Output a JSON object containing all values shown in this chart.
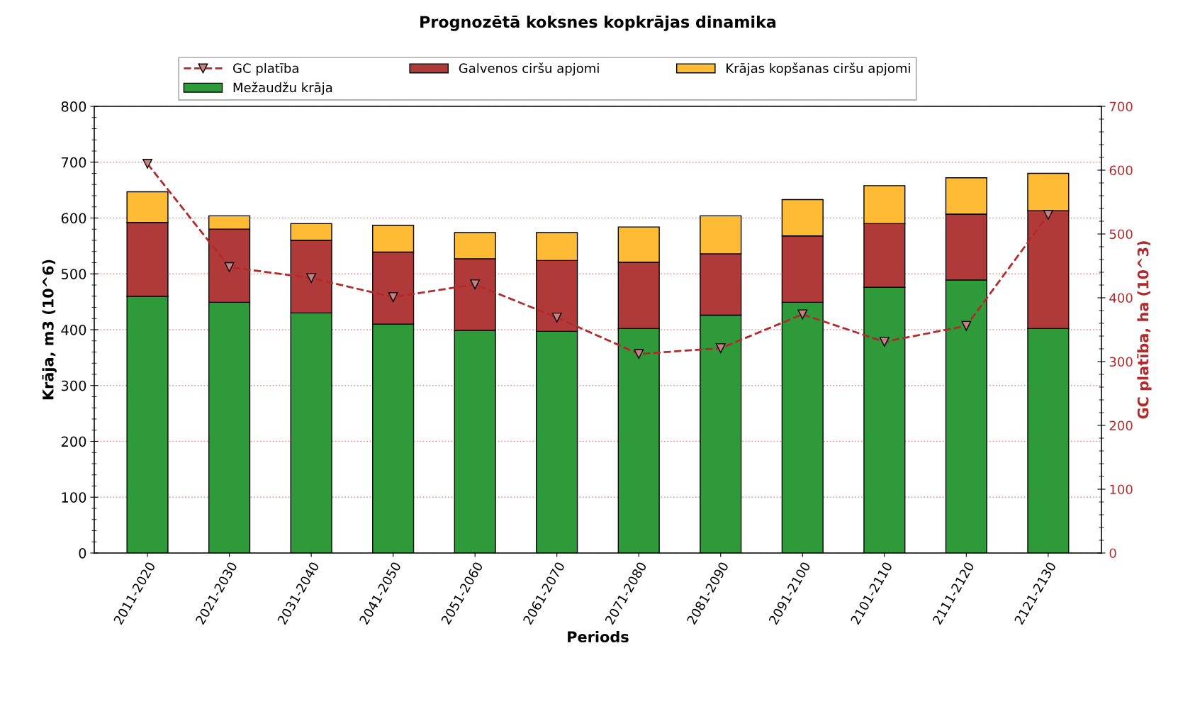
{
  "chart_data": {
    "type": "bar",
    "stacked": true,
    "title": "Prognozētā koksnes kopkrājas dinamika",
    "xlabel": "Periods",
    "ylabel": "Krāja, m3 (10^6)",
    "y2label": "GC platība, ha (10^3)",
    "categories": [
      "2011-2020",
      "2021-2030",
      "2031-2040",
      "2041-2050",
      "2051-2060",
      "2061-2070",
      "2071-2080",
      "2081-2090",
      "2091-2100",
      "2101-2110",
      "2111-2120",
      "2121-2130"
    ],
    "series": [
      {
        "name": "GC platība",
        "type": "line",
        "axis": "y2",
        "color": "#b22a2a",
        "marker": "triangle",
        "line_style": "dashed",
        "values": [
          610,
          448,
          431,
          401,
          421,
          369,
          312,
          321,
          374,
          331,
          356,
          530
        ]
      },
      {
        "name": "Mežaudžu krāja",
        "color": "#2e9a3a",
        "values": [
          460,
          449,
          430,
          410,
          399,
          397,
          402,
          426,
          449,
          476,
          489,
          402
        ]
      },
      {
        "name": "Galvenos ciršu apjomi",
        "color": "#b03a3a",
        "values": [
          132,
          131,
          130,
          129,
          128,
          127,
          119,
          110,
          119,
          114,
          118,
          211
        ]
      },
      {
        "name": "Krājas kopšanas ciršu apjomi",
        "color": "#ffbb33",
        "values": [
          55,
          24,
          30,
          48,
          47,
          50,
          63,
          68,
          65,
          68,
          65,
          67
        ]
      }
    ],
    "ylim": [
      0,
      800
    ],
    "yticks": [
      0,
      100,
      200,
      300,
      400,
      500,
      600,
      700,
      800
    ],
    "y2lim": [
      0,
      700
    ],
    "y2ticks": [
      0,
      100,
      200,
      300,
      400,
      500,
      600,
      700
    ],
    "grid": "y",
    "legend": "top"
  }
}
